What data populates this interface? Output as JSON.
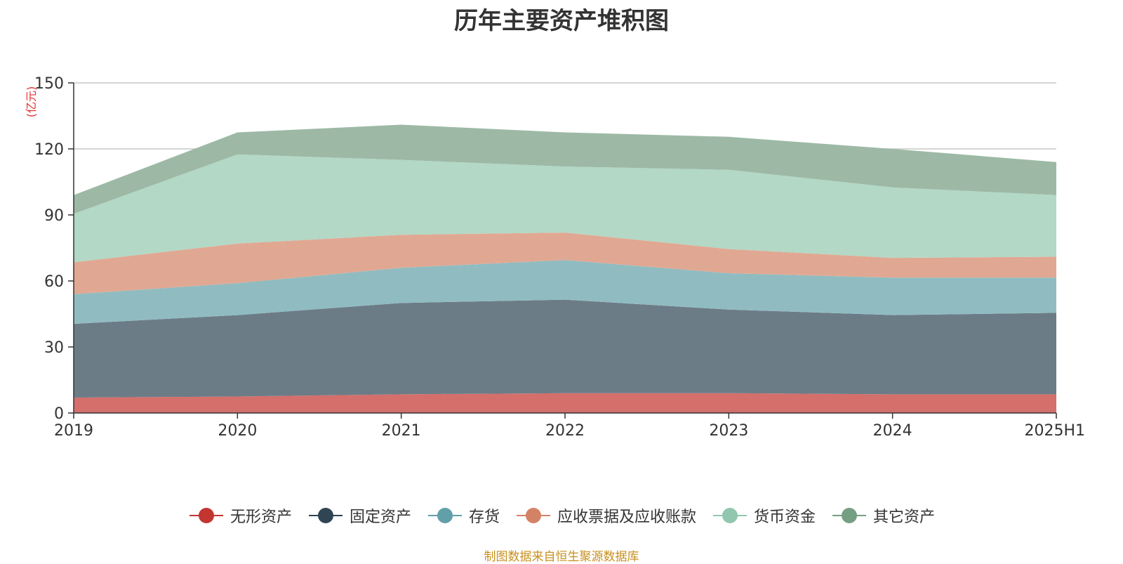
{
  "chart_data": {
    "type": "area",
    "title": "历年主要资产堆积图",
    "unit_label": "(亿元)",
    "categories": [
      "2019",
      "2020",
      "2021",
      "2022",
      "2023",
      "2024",
      "2025H1"
    ],
    "ylim": [
      0,
      150
    ],
    "yticks": [
      "0",
      "30",
      "60",
      "90",
      "120",
      "150"
    ],
    "stacked": true,
    "grid": true,
    "legend_position": "bottom",
    "series": [
      {
        "name": "无形资产",
        "color": "#c23531",
        "fill": "#d46f6b",
        "values": [
          7,
          7.5,
          8.5,
          9,
          9,
          8.5,
          8.5
        ]
      },
      {
        "name": "固定资产",
        "color": "#2f4554",
        "fill": "#6c7c87",
        "values": [
          33.5,
          37,
          41.5,
          42.5,
          38,
          36,
          37
        ]
      },
      {
        "name": "存货",
        "color": "#61a0a8",
        "fill": "#90bcc1",
        "values": [
          13.5,
          14.5,
          16,
          18,
          16.5,
          17,
          16
        ]
      },
      {
        "name": "应收票据及应收账款",
        "color": "#d48265",
        "fill": "#e0a893",
        "values": [
          14.5,
          18,
          15,
          12.5,
          11,
          9,
          9.5
        ]
      },
      {
        "name": "货币资金",
        "color": "#91c7ae",
        "fill": "#b3d8c5",
        "values": [
          22,
          40.5,
          34,
          30,
          36,
          32,
          28
        ]
      },
      {
        "name": "其它资产",
        "color": "#749f83",
        "fill": "#9db9a6",
        "values": [
          8.5,
          10,
          16,
          15.5,
          15,
          17.5,
          15
        ]
      }
    ]
  },
  "source_note": "制图数据来自恒生聚源数据库"
}
